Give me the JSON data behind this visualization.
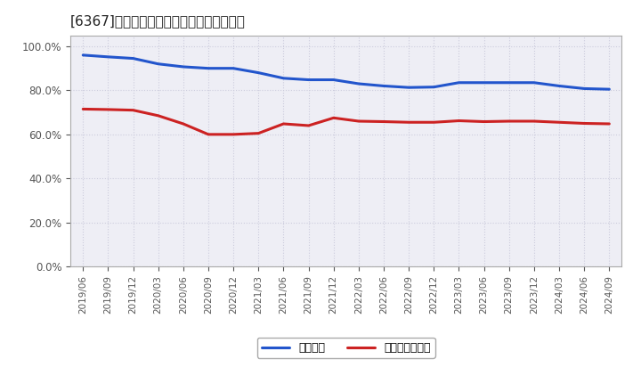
{
  "title": "[6367]　固定比率、固定長期適合率の推移",
  "ylim": [
    0.0,
    1.05
  ],
  "yticks": [
    0.0,
    0.2,
    0.4,
    0.6,
    0.8,
    1.0
  ],
  "background_color": "#ffffff",
  "plot_bg_color": "#eeeef5",
  "grid_color": "#ccccdd",
  "line1_color": "#2255cc",
  "line2_color": "#cc2222",
  "line1_label": "固定比率",
  "line2_label": "固定長期適合率",
  "line_width": 2.2,
  "dates": [
    "2019/06",
    "2019/09",
    "2019/12",
    "2020/03",
    "2020/06",
    "2020/09",
    "2020/12",
    "2021/03",
    "2021/06",
    "2021/09",
    "2021/12",
    "2022/03",
    "2022/06",
    "2022/09",
    "2022/12",
    "2023/03",
    "2023/06",
    "2023/09",
    "2023/12",
    "2024/03",
    "2024/06",
    "2024/09"
  ],
  "fixed_ratio": [
    0.96,
    0.952,
    0.945,
    0.92,
    0.907,
    0.9,
    0.9,
    0.88,
    0.855,
    0.848,
    0.848,
    0.83,
    0.82,
    0.813,
    0.815,
    0.835,
    0.835,
    0.835,
    0.835,
    0.82,
    0.808,
    0.805
  ],
  "fixed_long_ratio": [
    0.715,
    0.713,
    0.71,
    0.685,
    0.648,
    0.6,
    0.6,
    0.605,
    0.648,
    0.64,
    0.675,
    0.66,
    0.658,
    0.655,
    0.655,
    0.662,
    0.658,
    0.66,
    0.66,
    0.655,
    0.65,
    0.648
  ]
}
